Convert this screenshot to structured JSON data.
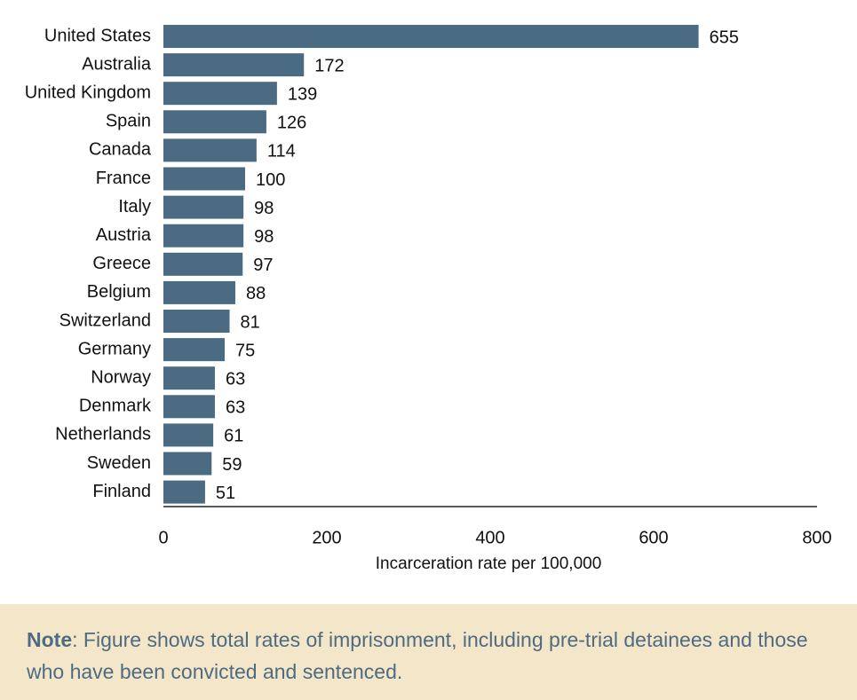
{
  "chart_data": {
    "type": "bar",
    "orientation": "horizontal",
    "categories": [
      "United States",
      "Australia",
      "United Kingdom",
      "Spain",
      "Canada",
      "France",
      "Italy",
      "Austria",
      "Greece",
      "Belgium",
      "Switzerland",
      "Germany",
      "Norway",
      "Denmark",
      "Netherlands",
      "Sweden",
      "Finland"
    ],
    "values": [
      655,
      172,
      139,
      126,
      114,
      100,
      98,
      98,
      97,
      88,
      81,
      75,
      63,
      63,
      61,
      59,
      51
    ],
    "xlabel": "Incarceration rate per 100,000",
    "xlim": [
      0,
      800
    ],
    "xticks": [
      0,
      200,
      400,
      600,
      800
    ],
    "grid": false,
    "bar_color": "#4a6b82"
  },
  "note": {
    "label": "Note",
    "text": ": Figure shows total rates of imprisonment, including pre-trial detainees and those who have been convicted and sentenced."
  }
}
